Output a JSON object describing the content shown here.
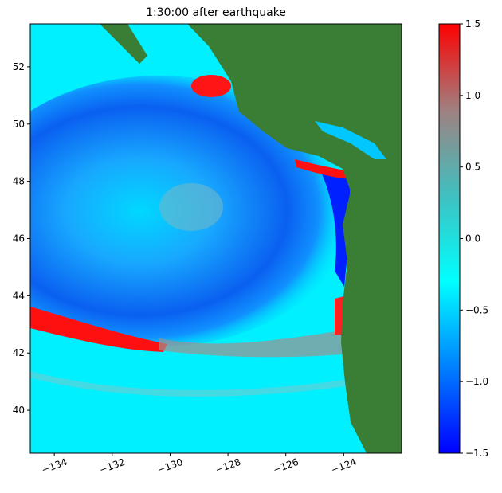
{
  "chart_data": {
    "type": "map",
    "title": "1:30:00 after earthquake",
    "xlim": [
      -134.83,
      -122
    ],
    "xticks": [
      {
        "value": -134,
        "label": "−134"
      },
      {
        "value": -132,
        "label": "−132"
      },
      {
        "value": -130,
        "label": "−130"
      },
      {
        "value": -128,
        "label": "−128"
      },
      {
        "value": -126,
        "label": "−126"
      },
      {
        "value": -124,
        "label": "−124"
      }
    ],
    "ylim": [
      38.5,
      53.5
    ],
    "yticks": [
      40,
      42,
      44,
      46,
      48,
      50,
      52
    ],
    "colorbar": {
      "lim": [
        -1.5,
        1.5
      ],
      "ticks": [
        {
          "value": -1.5,
          "label": "−1.5"
        },
        {
          "value": -1,
          "label": "−1.0"
        },
        {
          "value": -0.5,
          "label": "−0.5"
        },
        {
          "value": 0,
          "label": "0.0"
        },
        0.5,
        {
          "value": 1,
          "label": "1.0"
        },
        1.5
      ],
      "colors": [
        "#0000ff",
        "#0080ff",
        "#00ffff",
        "#40c0c0",
        "#a08080",
        "#ff0000"
      ]
    }
  }
}
